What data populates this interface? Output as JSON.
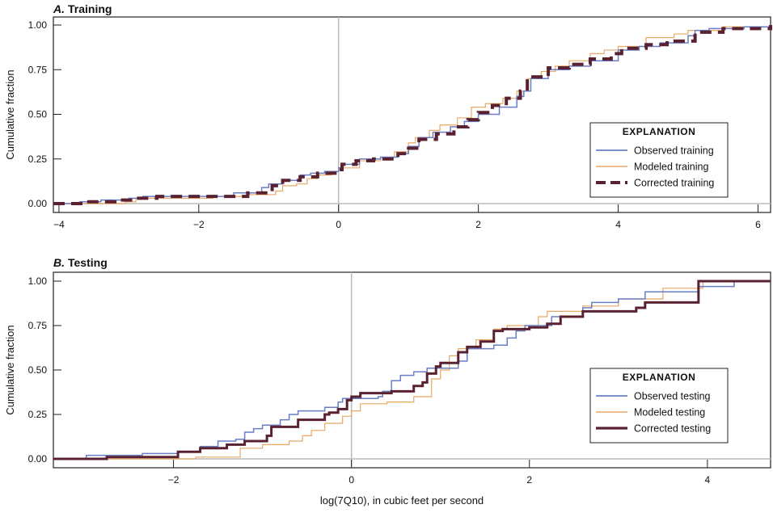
{
  "colors": {
    "observed": "#6a7ec6",
    "modeled": "#e8a866",
    "corrected": "#5a2230",
    "zero_line": "#bbbbbb",
    "frame": "#333333"
  },
  "chart_data": [
    {
      "type": "line",
      "step": true,
      "panel_letter": "A.",
      "title": "Training",
      "ylabel": "Cumulative fraction",
      "xlabel": "",
      "xlim": [
        -4.08,
        6.18
      ],
      "ylim": [
        -0.05,
        1.05
      ],
      "xticks": [
        {
          "value": -4,
          "label": "−4"
        },
        {
          "value": -2,
          "label": "−2"
        },
        {
          "value": 0,
          "label": "0"
        },
        {
          "value": 2,
          "label": "2"
        },
        {
          "value": 4,
          "label": "4"
        },
        {
          "value": 6,
          "label": "6"
        }
      ],
      "yticks": [
        {
          "value": 0,
          "label": "0.00"
        },
        {
          "value": 0.25,
          "label": "0.25"
        },
        {
          "value": 0.5,
          "label": "0.50"
        },
        {
          "value": 0.75,
          "label": "0.75"
        },
        {
          "value": 1,
          "label": "1.00"
        }
      ],
      "grid": false,
      "legend": {
        "title": "EXPLANATION",
        "placement": "lower-right"
      },
      "series": [
        {
          "name": "Observed training",
          "key": "observed",
          "style": "solid",
          "x": [
            -4.08,
            -3.7,
            -3.4,
            -3.0,
            -2.8,
            -1.7,
            -1.5,
            -1.1,
            -1.0,
            -0.8,
            -0.55,
            -0.4,
            -0.2,
            0.0,
            0.05,
            0.3,
            0.6,
            0.85,
            1.0,
            1.15,
            1.35,
            1.6,
            1.8,
            2.0,
            2.3,
            2.55,
            2.65,
            2.75,
            3.0,
            3.3,
            3.6,
            4.0,
            4.3,
            4.6,
            5.0,
            5.1,
            5.3,
            5.8,
            6.18
          ],
          "y": [
            0.0,
            0.01,
            0.02,
            0.03,
            0.04,
            0.04,
            0.06,
            0.09,
            0.11,
            0.13,
            0.16,
            0.17,
            0.18,
            0.2,
            0.22,
            0.25,
            0.26,
            0.28,
            0.32,
            0.37,
            0.4,
            0.43,
            0.46,
            0.5,
            0.54,
            0.6,
            0.63,
            0.7,
            0.75,
            0.77,
            0.8,
            0.86,
            0.88,
            0.9,
            0.94,
            0.97,
            0.98,
            0.99,
            1.0
          ]
        },
        {
          "name": "Modeled training",
          "key": "modeled",
          "style": "solid",
          "x": [
            -4.08,
            -3.05,
            -2.9,
            -1.8,
            -1.3,
            -0.9,
            -0.8,
            -0.6,
            -0.45,
            -0.3,
            -0.1,
            0.0,
            0.3,
            0.6,
            0.8,
            1.0,
            1.1,
            1.3,
            1.45,
            1.7,
            1.9,
            2.1,
            2.35,
            2.55,
            2.7,
            2.9,
            3.1,
            3.3,
            3.6,
            3.8,
            4.0,
            4.4,
            4.8,
            5.0,
            5.5,
            6.18
          ],
          "y": [
            0.0,
            0.01,
            0.03,
            0.04,
            0.05,
            0.07,
            0.1,
            0.11,
            0.14,
            0.16,
            0.18,
            0.2,
            0.24,
            0.26,
            0.29,
            0.34,
            0.37,
            0.41,
            0.44,
            0.48,
            0.54,
            0.56,
            0.59,
            0.63,
            0.7,
            0.74,
            0.77,
            0.8,
            0.84,
            0.86,
            0.88,
            0.93,
            0.95,
            0.97,
            0.99,
            1.0
          ]
        },
        {
          "name": "Corrected training",
          "key": "corrected",
          "style": "dashed",
          "x": [
            -4.08,
            -3.6,
            -3.2,
            -2.9,
            -2.6,
            -1.6,
            -1.3,
            -0.95,
            -0.8,
            -0.55,
            -0.3,
            -0.05,
            0.05,
            0.25,
            0.5,
            0.85,
            1.0,
            1.15,
            1.4,
            1.65,
            1.85,
            2.0,
            2.2,
            2.4,
            2.6,
            2.7,
            3.0,
            3.3,
            3.6,
            3.9,
            4.05,
            4.4,
            4.7,
            5.1,
            5.5,
            6.18
          ],
          "y": [
            0.0,
            0.01,
            0.02,
            0.03,
            0.04,
            0.04,
            0.06,
            0.1,
            0.13,
            0.15,
            0.17,
            0.19,
            0.22,
            0.24,
            0.25,
            0.28,
            0.31,
            0.36,
            0.39,
            0.43,
            0.47,
            0.51,
            0.55,
            0.59,
            0.63,
            0.71,
            0.76,
            0.78,
            0.81,
            0.84,
            0.87,
            0.89,
            0.91,
            0.96,
            0.98,
            1.0
          ]
        }
      ]
    },
    {
      "type": "line",
      "step": true,
      "panel_letter": "B.",
      "title": "Testing",
      "ylabel": "Cumulative fraction",
      "xlabel": "log(7Q10), in cubic feet per second",
      "xlim": [
        -3.35,
        4.71
      ],
      "ylim": [
        -0.05,
        1.05
      ],
      "xticks": [
        {
          "value": -2,
          "label": "−2"
        },
        {
          "value": 0,
          "label": "0"
        },
        {
          "value": 2,
          "label": "2"
        },
        {
          "value": 4,
          "label": "4"
        }
      ],
      "yticks": [
        {
          "value": 0,
          "label": "0.00"
        },
        {
          "value": 0.25,
          "label": "0.25"
        },
        {
          "value": 0.5,
          "label": "0.50"
        },
        {
          "value": 0.75,
          "label": "0.75"
        },
        {
          "value": 1,
          "label": "1.00"
        }
      ],
      "grid": false,
      "legend": {
        "title": "EXPLANATION",
        "placement": "lower-right"
      },
      "series": [
        {
          "name": "Observed testing",
          "key": "observed",
          "style": "solid",
          "x": [
            -3.35,
            -2.98,
            -2.35,
            -1.95,
            -1.7,
            -1.5,
            -1.3,
            -1.2,
            -1.1,
            -1.0,
            -0.8,
            -0.7,
            -0.6,
            -0.3,
            -0.15,
            -0.1,
            0.3,
            0.35,
            0.45,
            0.55,
            0.7,
            0.85,
            1.2,
            1.3,
            1.6,
            1.75,
            1.85,
            1.95,
            2.25,
            2.6,
            2.7,
            3.0,
            3.3,
            3.9,
            4.3,
            4.71
          ],
          "y": [
            0.0,
            0.02,
            0.03,
            0.04,
            0.07,
            0.1,
            0.11,
            0.15,
            0.17,
            0.19,
            0.22,
            0.25,
            0.27,
            0.29,
            0.32,
            0.34,
            0.35,
            0.38,
            0.44,
            0.47,
            0.49,
            0.51,
            0.55,
            0.62,
            0.64,
            0.68,
            0.72,
            0.75,
            0.8,
            0.85,
            0.88,
            0.9,
            0.94,
            0.97,
            1.0,
            1.0
          ]
        },
        {
          "name": "Modeled testing",
          "key": "modeled",
          "style": "solid",
          "x": [
            -3.35,
            -1.75,
            -1.25,
            -1.0,
            -0.7,
            -0.55,
            -0.45,
            -0.3,
            -0.1,
            0.0,
            0.1,
            0.4,
            0.7,
            0.9,
            1.0,
            1.1,
            1.2,
            1.4,
            1.6,
            1.75,
            2.1,
            2.2,
            2.6,
            3.0,
            3.5,
            3.95,
            4.71
          ],
          "y": [
            0.0,
            0.01,
            0.06,
            0.08,
            0.1,
            0.13,
            0.16,
            0.2,
            0.24,
            0.27,
            0.31,
            0.32,
            0.35,
            0.45,
            0.5,
            0.58,
            0.62,
            0.67,
            0.73,
            0.75,
            0.8,
            0.83,
            0.86,
            0.9,
            0.96,
            1.0,
            1.0
          ]
        },
        {
          "name": "Corrected testing",
          "key": "corrected",
          "style": "solid",
          "x": [
            -3.35,
            -2.75,
            -1.95,
            -1.7,
            -1.4,
            -1.2,
            -0.95,
            -0.9,
            -0.6,
            -0.3,
            -0.25,
            -0.15,
            -0.05,
            0.0,
            0.1,
            0.45,
            0.7,
            0.8,
            0.85,
            0.95,
            1.0,
            1.2,
            1.3,
            1.45,
            1.6,
            1.7,
            2.0,
            2.2,
            2.35,
            2.6,
            3.2,
            3.3,
            3.9,
            4.71
          ],
          "y": [
            0.0,
            0.01,
            0.04,
            0.06,
            0.08,
            0.1,
            0.13,
            0.18,
            0.22,
            0.25,
            0.26,
            0.28,
            0.33,
            0.35,
            0.37,
            0.38,
            0.41,
            0.43,
            0.48,
            0.52,
            0.54,
            0.6,
            0.63,
            0.66,
            0.72,
            0.73,
            0.74,
            0.76,
            0.8,
            0.83,
            0.85,
            0.88,
            1.0,
            1.0
          ]
        }
      ]
    }
  ]
}
